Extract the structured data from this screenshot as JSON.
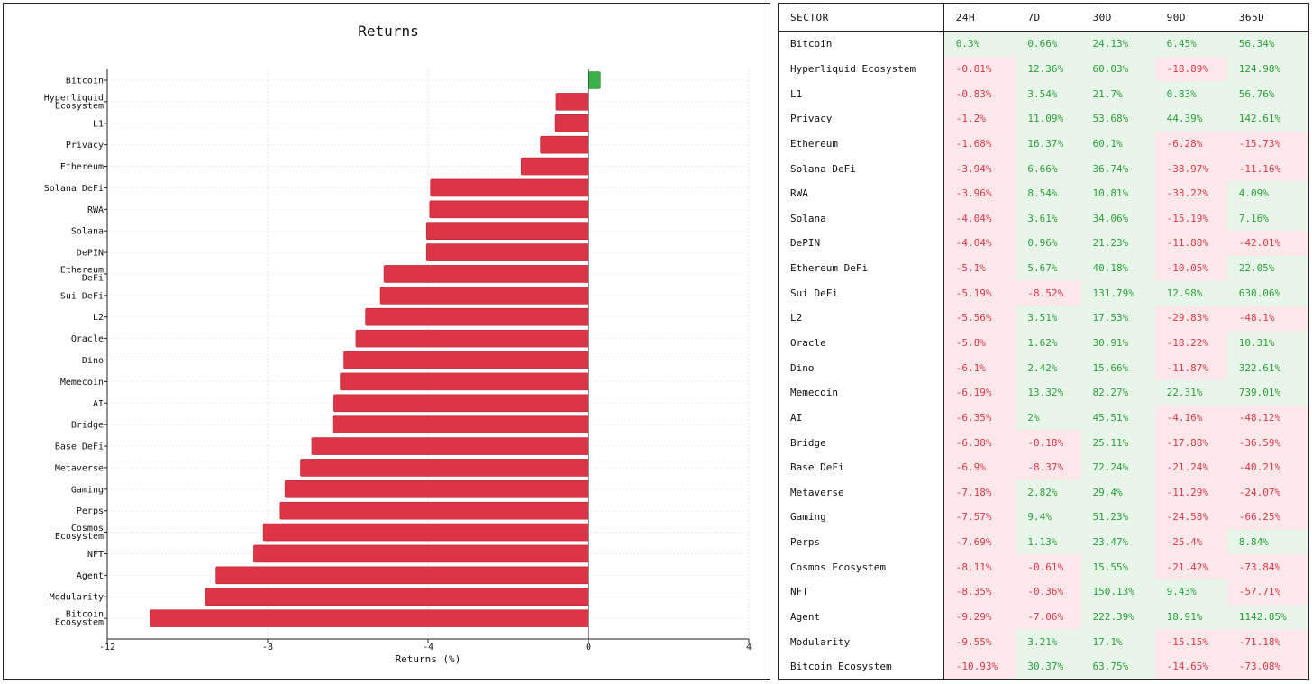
{
  "chart_data": {
    "type": "bar",
    "orientation": "horizontal",
    "title": "Returns",
    "xlabel": "Returns (%)",
    "ylabel": "",
    "xlim": [
      -12,
      4
    ],
    "xticks": [
      -12,
      -8,
      -4,
      0,
      4
    ],
    "grid": true,
    "categories": [
      "Bitcoin",
      "Hyperliquid Ecosystem",
      "L1",
      "Privacy",
      "Ethereum",
      "Solana DeFi",
      "RWA",
      "Solana",
      "DePIN",
      "Ethereum DeFi",
      "Sui DeFi",
      "L2",
      "Oracle",
      "Dino",
      "Memecoin",
      "AI",
      "Bridge",
      "Base DeFi",
      "Metaverse",
      "Gaming",
      "Perps",
      "Cosmos Ecosystem",
      "NFT",
      "Agent",
      "Modularity",
      "Bitcoin Ecosystem"
    ],
    "category_lines": [
      [
        "Bitcoin"
      ],
      [
        "Hyperliquid",
        "Ecosystem"
      ],
      [
        "L1"
      ],
      [
        "Privacy"
      ],
      [
        "Ethereum"
      ],
      [
        "Solana DeFi"
      ],
      [
        "RWA"
      ],
      [
        "Solana"
      ],
      [
        "DePIN"
      ],
      [
        "Ethereum",
        "DeFi"
      ],
      [
        "Sui DeFi"
      ],
      [
        "L2"
      ],
      [
        "Oracle"
      ],
      [
        "Dino"
      ],
      [
        "Memecoin"
      ],
      [
        "AI"
      ],
      [
        "Bridge"
      ],
      [
        "Base DeFi"
      ],
      [
        "Metaverse"
      ],
      [
        "Gaming"
      ],
      [
        "Perps"
      ],
      [
        "Cosmos",
        "Ecosystem"
      ],
      [
        "NFT"
      ],
      [
        "Agent"
      ],
      [
        "Modularity"
      ],
      [
        "Bitcoin",
        "Ecosystem"
      ]
    ],
    "values": [
      0.3,
      -0.81,
      -0.83,
      -1.2,
      -1.68,
      -3.94,
      -3.96,
      -4.04,
      -4.04,
      -5.1,
      -5.19,
      -5.56,
      -5.8,
      -6.1,
      -6.19,
      -6.35,
      -6.38,
      -6.9,
      -7.18,
      -7.57,
      -7.69,
      -8.11,
      -8.35,
      -9.29,
      -9.55,
      -10.93
    ],
    "positive_color": "#3ab04b",
    "negative_color": "#dc3545"
  },
  "table": {
    "headers": [
      "SECTOR",
      "24H",
      "7D",
      "30D",
      "90D",
      "365D"
    ],
    "rows": [
      [
        "Bitcoin",
        "0.3%",
        "0.66%",
        "24.13%",
        "6.45%",
        "56.34%"
      ],
      [
        "Hyperliquid Ecosystem",
        "-0.81%",
        "12.36%",
        "60.03%",
        "-18.89%",
        "124.98%"
      ],
      [
        "L1",
        "-0.83%",
        "3.54%",
        "21.7%",
        "0.83%",
        "56.76%"
      ],
      [
        "Privacy",
        "-1.2%",
        "11.09%",
        "53.68%",
        "44.39%",
        "142.61%"
      ],
      [
        "Ethereum",
        "-1.68%",
        "16.37%",
        "60.1%",
        "-6.28%",
        "-15.73%"
      ],
      [
        "Solana DeFi",
        "-3.94%",
        "6.66%",
        "36.74%",
        "-38.97%",
        "-11.16%"
      ],
      [
        "RWA",
        "-3.96%",
        "8.54%",
        "10.81%",
        "-33.22%",
        "4.09%"
      ],
      [
        "Solana",
        "-4.04%",
        "3.61%",
        "34.06%",
        "-15.19%",
        "7.16%"
      ],
      [
        "DePIN",
        "-4.04%",
        "0.96%",
        "21.23%",
        "-11.88%",
        "-42.01%"
      ],
      [
        "Ethereum DeFi",
        "-5.1%",
        "5.67%",
        "40.18%",
        "-10.05%",
        "22.05%"
      ],
      [
        "Sui DeFi",
        "-5.19%",
        "-8.52%",
        "131.79%",
        "12.98%",
        "630.06%"
      ],
      [
        "L2",
        "-5.56%",
        "3.51%",
        "17.53%",
        "-29.83%",
        "-48.1%"
      ],
      [
        "Oracle",
        "-5.8%",
        "1.62%",
        "30.91%",
        "-18.22%",
        "10.31%"
      ],
      [
        "Dino",
        "-6.1%",
        "2.42%",
        "15.66%",
        "-11.87%",
        "322.61%"
      ],
      [
        "Memecoin",
        "-6.19%",
        "13.32%",
        "82.27%",
        "22.31%",
        "739.01%"
      ],
      [
        "AI",
        "-6.35%",
        "2%",
        "45.51%",
        "-4.16%",
        "-48.12%"
      ],
      [
        "Bridge",
        "-6.38%",
        "-0.18%",
        "25.11%",
        "-17.88%",
        "-36.59%"
      ],
      [
        "Base DeFi",
        "-6.9%",
        "-8.37%",
        "72.24%",
        "-21.24%",
        "-40.21%"
      ],
      [
        "Metaverse",
        "-7.18%",
        "2.82%",
        "29.4%",
        "-11.29%",
        "-24.07%"
      ],
      [
        "Gaming",
        "-7.57%",
        "9.4%",
        "51.23%",
        "-24.58%",
        "-66.25%"
      ],
      [
        "Perps",
        "-7.69%",
        "1.13%",
        "23.47%",
        "-25.4%",
        "8.84%"
      ],
      [
        "Cosmos Ecosystem",
        "-8.11%",
        "-0.61%",
        "15.55%",
        "-21.42%",
        "-73.84%"
      ],
      [
        "NFT",
        "-8.35%",
        "-0.36%",
        "150.13%",
        "9.43%",
        "-57.71%"
      ],
      [
        "Agent",
        "-9.29%",
        "-7.06%",
        "222.39%",
        "18.91%",
        "1142.85%"
      ],
      [
        "Modularity",
        "-9.55%",
        "3.21%",
        "17.1%",
        "-15.15%",
        "-71.18%"
      ],
      [
        "Bitcoin Ecosystem",
        "-10.93%",
        "30.37%",
        "63.75%",
        "-14.65%",
        "-73.08%"
      ]
    ]
  }
}
